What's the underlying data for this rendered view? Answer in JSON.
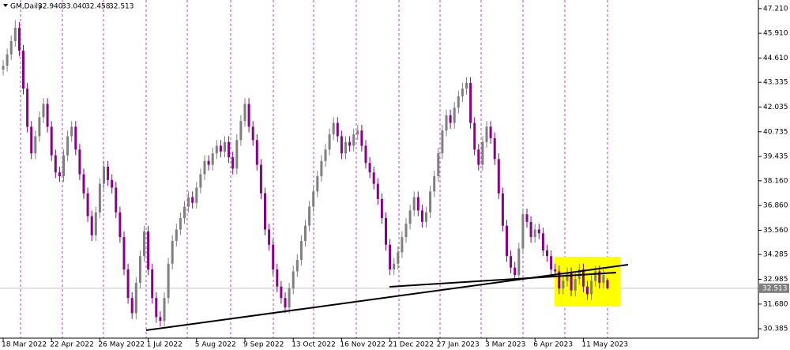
{
  "chart_data": {
    "type": "candlestick",
    "symbol": "GM,Daily",
    "header_values": [
      "32.940",
      "33.040",
      "32.458",
      "32.513"
    ],
    "up_color": "#7f7f7f",
    "down_color": "#8b008b",
    "last_price": 32.513,
    "ylim": [
      29.89,
      47.66
    ],
    "yticks": [
      30.385,
      {
        "value": 31.68,
        "label": "31.680"
      },
      32.985,
      34.285,
      {
        "value": 35.56,
        "label": "35.560"
      },
      {
        "value": 36.86,
        "label": "36.860"
      },
      {
        "value": 38.16,
        "label": "38.160"
      },
      39.435,
      40.735,
      42.035,
      43.335,
      {
        "value": 44.61,
        "label": "44.610"
      },
      {
        "value": 45.91,
        "label": "45.910"
      },
      {
        "value": 47.21,
        "label": "47.210"
      }
    ],
    "categories": [
      "18 Mar 2022",
      null,
      null,
      null,
      null,
      null,
      null,
      null,
      null,
      null,
      null,
      null,
      "22 Apr 2022",
      null,
      null,
      null,
      null,
      null,
      null,
      null,
      null,
      null,
      null,
      null,
      "26 May 2022",
      null,
      null,
      null,
      null,
      null,
      null,
      null,
      null,
      null,
      null,
      null,
      "1 Jul 2022",
      null,
      null,
      null,
      null,
      null,
      null,
      null,
      null,
      null,
      null,
      null,
      "5 Aug 2022",
      null,
      null,
      null,
      null,
      null,
      null,
      null,
      null,
      null,
      null,
      null,
      "9 Sep 2022",
      null,
      null,
      null,
      null,
      null,
      null,
      null,
      null,
      null,
      null,
      null,
      "13 Oct 2022",
      null,
      null,
      null,
      null,
      null,
      null,
      null,
      null,
      null,
      null,
      null,
      "16 Nov 2022",
      null,
      null,
      null,
      null,
      null,
      null,
      null,
      null,
      null,
      null,
      null,
      "21 Dec 2022",
      null,
      null,
      null,
      null,
      null,
      null,
      null,
      null,
      null,
      null,
      null,
      "27 Jan 2023",
      null,
      null,
      null,
      null,
      null,
      null,
      null,
      null,
      null,
      null,
      null,
      "3 Mar 2023",
      null,
      null,
      null,
      null,
      null,
      null,
      null,
      null,
      null,
      null,
      null,
      "6 Apr 2023",
      null,
      null,
      null,
      null,
      null,
      null,
      null,
      null,
      null,
      null,
      null,
      "11 May 2023",
      null,
      null,
      null,
      null,
      null,
      null
    ],
    "ohlc": [
      [
        44.0,
        44.5,
        43.7,
        44.2
      ],
      [
        44.2,
        45.1,
        43.9,
        44.8
      ],
      [
        44.8,
        45.8,
        44.5,
        45.5
      ],
      [
        45.5,
        46.6,
        45.2,
        46.2
      ],
      [
        46.2,
        46.5,
        44.7,
        45.0
      ],
      [
        45.0,
        45.3,
        42.7,
        43.0
      ],
      [
        43.0,
        43.3,
        40.7,
        41.0
      ],
      [
        41.0,
        41.3,
        39.3,
        39.6
      ],
      [
        39.6,
        40.8,
        39.3,
        40.5
      ],
      [
        40.5,
        41.8,
        40.2,
        41.5
      ],
      [
        41.5,
        42.5,
        41.2,
        42.2
      ],
      [
        42.2,
        42.5,
        40.7,
        41.0
      ],
      [
        41.0,
        41.3,
        39.2,
        39.5
      ],
      [
        39.5,
        39.8,
        38.3,
        38.6
      ],
      [
        38.6,
        38.9,
        38.1,
        38.4
      ],
      [
        38.4,
        39.8,
        38.1,
        39.5
      ],
      [
        39.5,
        40.8,
        39.2,
        40.5
      ],
      [
        40.5,
        41.3,
        40.2,
        41.0
      ],
      [
        41.0,
        41.3,
        39.5,
        39.8
      ],
      [
        39.8,
        40.1,
        38.2,
        38.5
      ],
      [
        38.5,
        38.8,
        37.2,
        37.5
      ],
      [
        37.5,
        37.8,
        36.0,
        36.3
      ],
      [
        36.3,
        36.6,
        35.0,
        35.3
      ],
      [
        35.3,
        36.8,
        35.0,
        36.5
      ],
      [
        36.5,
        38.3,
        36.2,
        38.0
      ],
      [
        38.0,
        39.2,
        37.7,
        38.9
      ],
      [
        38.9,
        39.2,
        37.9,
        38.2
      ],
      [
        38.2,
        38.5,
        37.5,
        37.8
      ],
      [
        37.8,
        38.1,
        36.2,
        36.5
      ],
      [
        36.5,
        36.8,
        34.9,
        35.2
      ],
      [
        35.2,
        35.5,
        33.2,
        33.5
      ],
      [
        33.5,
        33.8,
        31.7,
        32.0
      ],
      [
        32.0,
        32.3,
        30.9,
        31.2
      ],
      [
        31.2,
        33.1,
        30.9,
        32.8
      ],
      [
        32.8,
        34.5,
        32.5,
        34.2
      ],
      [
        34.2,
        35.8,
        33.9,
        35.5
      ],
      [
        35.5,
        35.8,
        33.2,
        33.5
      ],
      [
        33.5,
        33.8,
        31.7,
        32.0
      ],
      [
        32.0,
        32.3,
        30.7,
        31.0
      ],
      [
        31.0,
        31.3,
        30.5,
        30.8
      ],
      [
        30.8,
        32.3,
        30.5,
        32.0
      ],
      [
        32.0,
        34.1,
        31.7,
        33.8
      ],
      [
        33.8,
        35.3,
        33.5,
        35.0
      ],
      [
        35.0,
        35.9,
        34.7,
        35.6
      ],
      [
        35.6,
        36.5,
        35.3,
        36.2
      ],
      [
        36.2,
        37.1,
        35.9,
        36.8
      ],
      [
        36.8,
        37.6,
        36.5,
        37.3
      ],
      [
        37.3,
        37.6,
        36.7,
        37.0
      ],
      [
        37.0,
        38.1,
        36.7,
        37.8
      ],
      [
        37.8,
        38.8,
        37.5,
        38.5
      ],
      [
        38.5,
        39.5,
        38.2,
        39.2
      ],
      [
        39.2,
        39.5,
        38.7,
        39.0
      ],
      [
        39.0,
        39.9,
        38.7,
        39.6
      ],
      [
        39.6,
        40.3,
        39.3,
        40.0
      ],
      [
        40.0,
        40.3,
        39.4,
        39.7
      ],
      [
        39.7,
        40.5,
        39.4,
        40.2
      ],
      [
        40.2,
        40.5,
        39.1,
        39.4
      ],
      [
        39.4,
        39.7,
        38.5,
        38.8
      ],
      [
        38.8,
        40.6,
        38.5,
        40.3
      ],
      [
        40.3,
        41.6,
        40.0,
        41.3
      ],
      [
        41.3,
        42.5,
        41.0,
        42.2
      ],
      [
        42.2,
        42.5,
        40.7,
        41.0
      ],
      [
        41.0,
        41.3,
        40.0,
        40.3
      ],
      [
        40.3,
        40.6,
        38.7,
        39.0
      ],
      [
        39.0,
        39.3,
        37.2,
        37.5
      ],
      [
        37.5,
        37.8,
        35.3,
        35.6
      ],
      [
        35.6,
        35.9,
        34.5,
        34.8
      ],
      [
        34.8,
        35.1,
        33.2,
        33.5
      ],
      [
        33.5,
        33.8,
        32.3,
        32.6
      ],
      [
        32.6,
        32.9,
        31.7,
        32.0
      ],
      [
        32.0,
        32.3,
        31.2,
        31.5
      ],
      [
        31.5,
        32.8,
        31.2,
        32.5
      ],
      [
        32.5,
        33.7,
        32.2,
        33.4
      ],
      [
        33.4,
        34.3,
        33.1,
        34.0
      ],
      [
        34.0,
        35.3,
        33.7,
        35.0
      ],
      [
        35.0,
        36.1,
        34.7,
        35.8
      ],
      [
        35.8,
        37.1,
        35.5,
        36.8
      ],
      [
        36.8,
        37.9,
        36.5,
        37.6
      ],
      [
        37.6,
        38.7,
        37.3,
        38.4
      ],
      [
        38.4,
        39.5,
        38.1,
        39.2
      ],
      [
        39.2,
        40.1,
        38.9,
        39.8
      ],
      [
        39.8,
        40.9,
        39.5,
        40.6
      ],
      [
        40.6,
        41.5,
        40.3,
        41.2
      ],
      [
        41.2,
        41.5,
        40.2,
        40.5
      ],
      [
        40.5,
        40.8,
        39.3,
        39.6
      ],
      [
        39.6,
        40.5,
        39.3,
        40.2
      ],
      [
        40.2,
        40.5,
        39.7,
        40.0
      ],
      [
        40.0,
        40.9,
        39.7,
        40.6
      ],
      [
        40.6,
        41.1,
        40.3,
        40.8
      ],
      [
        40.8,
        41.1,
        39.7,
        40.0
      ],
      [
        40.0,
        40.3,
        38.8,
        39.1
      ],
      [
        39.1,
        39.4,
        38.3,
        38.6
      ],
      [
        38.6,
        38.9,
        37.7,
        38.0
      ],
      [
        38.0,
        38.3,
        36.9,
        37.2
      ],
      [
        37.2,
        37.5,
        35.9,
        36.2
      ],
      [
        36.2,
        36.5,
        34.5,
        34.8
      ],
      [
        34.8,
        35.1,
        33.2,
        33.5
      ],
      [
        33.5,
        34.1,
        33.2,
        33.8
      ],
      [
        33.8,
        34.7,
        33.5,
        34.4
      ],
      [
        34.4,
        35.5,
        34.1,
        35.2
      ],
      [
        35.2,
        36.2,
        34.9,
        35.9
      ],
      [
        35.9,
        36.9,
        35.6,
        36.6
      ],
      [
        36.6,
        37.6,
        36.3,
        37.3
      ],
      [
        37.3,
        37.6,
        36.3,
        36.6
      ],
      [
        36.6,
        36.9,
        35.7,
        36.0
      ],
      [
        36.0,
        36.8,
        35.7,
        36.5
      ],
      [
        36.5,
        37.9,
        36.2,
        37.6
      ],
      [
        37.6,
        38.7,
        37.3,
        38.4
      ],
      [
        38.4,
        39.9,
        38.1,
        39.6
      ],
      [
        39.6,
        41.1,
        39.3,
        40.8
      ],
      [
        40.8,
        41.9,
        40.5,
        41.6
      ],
      [
        41.6,
        41.9,
        40.9,
        41.2
      ],
      [
        41.2,
        42.3,
        40.9,
        42.0
      ],
      [
        42.0,
        42.9,
        41.7,
        42.6
      ],
      [
        42.6,
        43.3,
        42.3,
        43.0
      ],
      [
        43.0,
        43.6,
        42.7,
        43.3
      ],
      [
        43.3,
        43.6,
        40.9,
        41.2
      ],
      [
        41.2,
        41.5,
        39.5,
        39.8
      ],
      [
        39.8,
        40.1,
        38.7,
        39.0
      ],
      [
        39.0,
        40.5,
        38.7,
        40.2
      ],
      [
        40.2,
        41.3,
        39.9,
        41.0
      ],
      [
        41.0,
        41.3,
        40.1,
        40.4
      ],
      [
        40.4,
        40.7,
        39.0,
        39.3
      ],
      [
        39.3,
        39.6,
        37.2,
        37.5
      ],
      [
        37.5,
        37.8,
        35.5,
        35.8
      ],
      [
        35.8,
        36.1,
        33.9,
        34.2
      ],
      [
        34.2,
        34.5,
        33.3,
        33.6
      ],
      [
        33.6,
        33.9,
        32.9,
        33.2
      ],
      [
        33.2,
        34.9,
        32.9,
        34.6
      ],
      [
        34.6,
        36.7,
        34.3,
        36.4
      ],
      [
        36.4,
        36.7,
        35.7,
        36.0
      ],
      [
        36.0,
        36.3,
        34.9,
        35.2
      ],
      [
        35.2,
        35.9,
        34.9,
        35.6
      ],
      [
        35.6,
        35.9,
        35.1,
        35.4
      ],
      [
        35.4,
        35.7,
        34.2,
        34.5
      ],
      [
        34.5,
        34.8,
        33.9,
        34.2
      ],
      [
        34.2,
        34.5,
        33.2,
        33.5
      ],
      [
        33.5,
        33.8,
        33.1,
        33.4
      ],
      [
        33.4,
        33.7,
        32.2,
        32.5
      ],
      [
        32.5,
        33.2,
        32.2,
        32.9
      ],
      [
        32.9,
        33.6,
        32.6,
        33.3
      ],
      [
        33.3,
        33.6,
        32.1,
        32.4
      ],
      [
        32.4,
        33.3,
        32.1,
        33.0
      ],
      [
        33.0,
        33.8,
        32.7,
        33.5
      ],
      [
        33.5,
        33.8,
        32.3,
        32.6
      ],
      [
        32.6,
        32.9,
        31.9,
        32.2
      ],
      [
        32.2,
        33.2,
        31.9,
        32.9
      ],
      [
        32.9,
        33.7,
        32.6,
        33.4
      ],
      [
        33.4,
        33.7,
        32.5,
        32.8
      ],
      [
        32.8,
        33.5,
        32.5,
        33.2
      ],
      [
        32.94,
        33.04,
        32.458,
        32.513
      ]
    ]
  }
}
